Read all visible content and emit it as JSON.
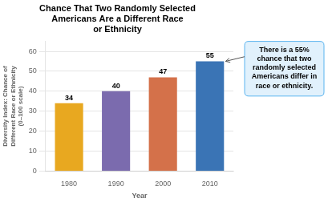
{
  "chart_data": {
    "type": "bar",
    "title": "Chance That Two Randomly Selected\nAmericans Are a Different Race\nor Ethnicity",
    "categories": [
      "1980",
      "1990",
      "2000",
      "2010"
    ],
    "values": [
      34,
      40,
      47,
      55
    ],
    "colors": [
      "#E8A820",
      "#7B6BAE",
      "#D4714A",
      "#3A74B5"
    ],
    "xlabel": "Year",
    "ylabel": "Diversity Index: Chance of\nDifferent Race or Ethnicity\n(0–100 scale)",
    "ylim": [
      0,
      65
    ],
    "yticks": [
      0,
      10,
      20,
      30,
      40,
      50,
      60
    ],
    "grid": true,
    "data_labels": true,
    "annotation": "There is a 55%\nchance that two\nrandomly selected\nAmericans differ in\nrace or ethnicity."
  }
}
